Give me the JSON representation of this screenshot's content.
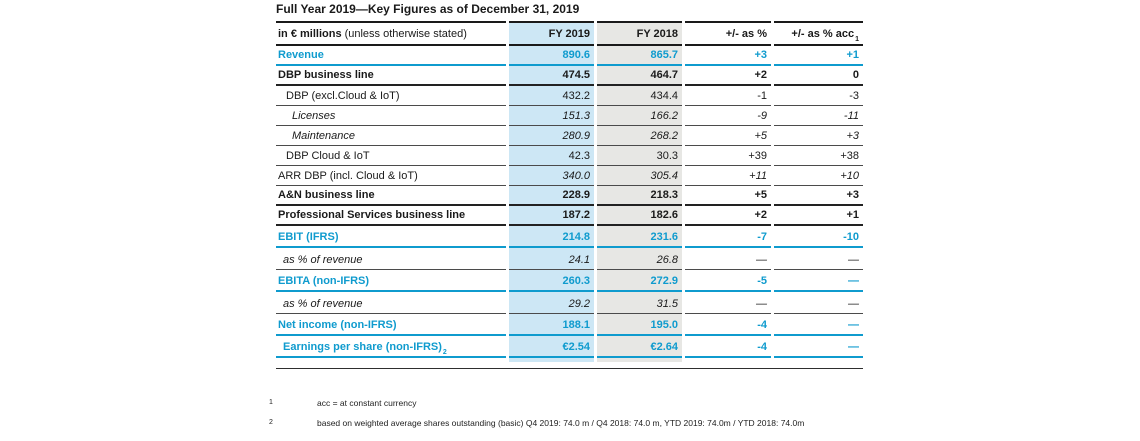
{
  "title": "Full Year 2019—Key Figures as of December 31, 2019",
  "colors": {
    "accent_blue": "#0f9bce",
    "fy2019_bg": "#cde7f5",
    "fy2018_bg": "#e7e7e4",
    "rule_dark": "#1a1a1a",
    "rule_gray": "#4b4b4b"
  },
  "table": {
    "header": {
      "label_bold": "in € millions",
      "label_note": "(unless otherwise stated)",
      "col_fy2019": "FY 2019",
      "col_fy2018": "FY 2018",
      "col_pct": "+/- as %",
      "col_acc": "+/- as % acc",
      "col_acc_sup": "1"
    },
    "rows": [
      {
        "label": "Revenue",
        "fy2019": "890.6",
        "fy2018": "865.7",
        "pct_change": "+3",
        "acc_change": "+1",
        "style": "blue",
        "indent": 0
      },
      {
        "label": "DBP business line",
        "fy2019": "474.5",
        "fy2018": "464.7",
        "pct_change": "+2",
        "acc_change": "0",
        "style": "bold",
        "indent": 0
      },
      {
        "label": "DBP (excl.Cloud & IoT)",
        "fy2019": "432.2",
        "fy2018": "434.4",
        "pct_change": "-1",
        "acc_change": "-3",
        "style": "regular",
        "indent": 1
      },
      {
        "label": "Licenses",
        "fy2019": "151.3",
        "fy2018": "166.2",
        "pct_change": "-9",
        "acc_change": "-11",
        "style": "italic",
        "indent": 2
      },
      {
        "label": "Maintenance",
        "fy2019": "280.9",
        "fy2018": "268.2",
        "pct_change": "+5",
        "acc_change": "+3",
        "style": "italic",
        "indent": 2
      },
      {
        "label": "DBP Cloud & IoT",
        "fy2019": "42.3",
        "fy2018": "30.3",
        "pct_change": "+39",
        "acc_change": "+38",
        "style": "regular",
        "indent": 1
      },
      {
        "label": "ARR DBP (incl. Cloud & IoT)",
        "fy2019": "340.0",
        "fy2018": "305.4",
        "pct_change": "+11",
        "acc_change": "+10",
        "style": "regular",
        "indent": 0,
        "values_italic": true
      },
      {
        "label": "A&N business line",
        "fy2019": "228.9",
        "fy2018": "218.3",
        "pct_change": "+5",
        "acc_change": "+3",
        "style": "bold",
        "indent": 0
      },
      {
        "label": "Professional Services business line",
        "fy2019": "187.2",
        "fy2018": "182.6",
        "pct_change": "+2",
        "acc_change": "+1",
        "style": "bold",
        "indent": 0
      },
      {
        "label": "EBIT (IFRS)",
        "fy2019": "214.8",
        "fy2018": "231.6",
        "pct_change": "-7",
        "acc_change": "-10",
        "style": "blue",
        "indent": 0
      },
      {
        "label": "as % of revenue",
        "fy2019": "24.1",
        "fy2018": "26.8",
        "pct_change": "—",
        "acc_change": "—",
        "style": "italic",
        "indent": 3
      },
      {
        "label": "EBITA (non-IFRS)",
        "fy2019": "260.3",
        "fy2018": "272.9",
        "pct_change": "-5",
        "acc_change": "—",
        "style": "blue",
        "indent": 0
      },
      {
        "label": "as % of revenue",
        "fy2019": "29.2",
        "fy2018": "31.5",
        "pct_change": "—",
        "acc_change": "—",
        "style": "italic",
        "indent": 3
      },
      {
        "label": "Net income (non-IFRS)",
        "fy2019": "188.1",
        "fy2018": "195.0",
        "pct_change": "-4",
        "acc_change": "—",
        "style": "blue",
        "indent": 0
      },
      {
        "label": "Earnings per share (non-IFRS)",
        "label_sup": "2",
        "fy2019": "€2.54",
        "fy2018": "€2.64",
        "pct_change": "-4",
        "acc_change": "—",
        "style": "blue",
        "indent": 3
      }
    ]
  },
  "footnotes": [
    {
      "marker": "1",
      "text": "acc = at constant currency"
    },
    {
      "marker": "2",
      "text": "based on weighted average shares outstanding (basic) Q4 2019: 74.0 m / Q4 2018: 74.0 m, YTD 2019: 74.0m / YTD 2018: 74.0m"
    }
  ]
}
